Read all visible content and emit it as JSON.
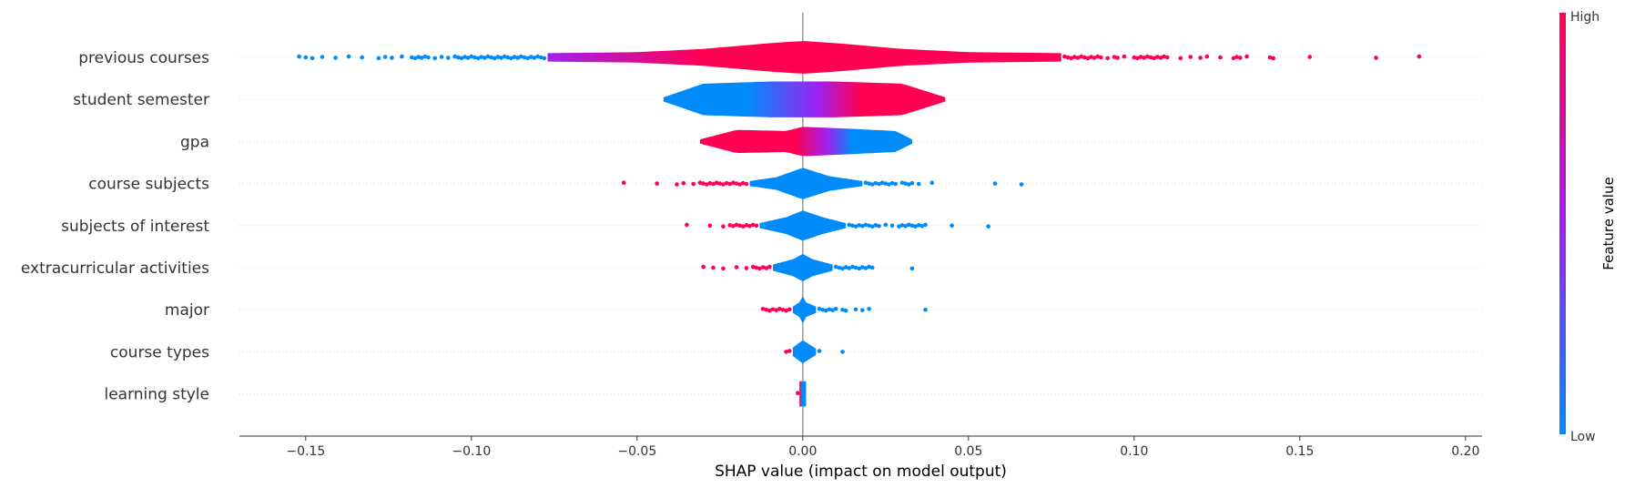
{
  "chart_data": {
    "type": "violin",
    "xlabel": "SHAP value (impact on model output)",
    "xlim": [
      -0.17,
      0.205
    ],
    "xticks": [
      -0.15,
      -0.1,
      -0.05,
      0.0,
      0.05,
      0.1,
      0.15,
      0.2
    ],
    "xtick_labels": [
      "−0.15",
      "−0.10",
      "−0.05",
      "0.00",
      "0.05",
      "0.10",
      "0.15",
      "0.20"
    ],
    "colors": {
      "low": "#008bfb",
      "mid": "#a020f0",
      "high": "#ff0052"
    },
    "colorbar": {
      "title": "Feature value",
      "high_label": "High",
      "low_label": "Low"
    },
    "features": [
      {
        "name": "previous courses",
        "body": [
          -0.077,
          0.078
        ],
        "width": [
          [
            -0.077,
            0.2
          ],
          [
            -0.05,
            0.25
          ],
          [
            -0.03,
            0.4
          ],
          [
            -0.012,
            0.65
          ],
          [
            0,
            0.78
          ],
          [
            0.012,
            0.65
          ],
          [
            0.03,
            0.4
          ],
          [
            0.05,
            0.25
          ],
          [
            0.078,
            0.2
          ]
        ],
        "grad": [
          [
            0,
            "mid"
          ],
          [
            0.3,
            "high"
          ],
          [
            1,
            "high"
          ]
        ],
        "pts_low": [
          -0.152,
          -0.15,
          -0.148,
          -0.145,
          -0.141,
          -0.137,
          -0.133,
          -0.128,
          -0.126,
          -0.124,
          -0.121,
          -0.118,
          -0.117,
          -0.116,
          -0.115,
          -0.114,
          -0.113,
          -0.111,
          -0.109,
          -0.107,
          -0.105,
          -0.104,
          -0.103,
          -0.102,
          -0.101,
          -0.1,
          -0.099,
          -0.098,
          -0.097,
          -0.096,
          -0.095,
          -0.094,
          -0.093,
          -0.092,
          -0.091,
          -0.09,
          -0.089,
          -0.088,
          -0.087,
          -0.086,
          -0.085,
          -0.084,
          -0.083,
          -0.082,
          -0.081,
          -0.08,
          -0.079,
          -0.078
        ],
        "pts_high": [
          0.079,
          0.08,
          0.081,
          0.082,
          0.083,
          0.084,
          0.085,
          0.086,
          0.087,
          0.088,
          0.089,
          0.09,
          0.092,
          0.094,
          0.095,
          0.097,
          0.1,
          0.101,
          0.102,
          0.103,
          0.104,
          0.105,
          0.106,
          0.107,
          0.108,
          0.109,
          0.11,
          0.114,
          0.117,
          0.12,
          0.122,
          0.126,
          0.13,
          0.131,
          0.132,
          0.134,
          0.141,
          0.142,
          0.153,
          0.173,
          0.186
        ]
      },
      {
        "name": "student semester",
        "body": [
          -0.042,
          0.043
        ],
        "width": [
          [
            -0.042,
            0.1
          ],
          [
            -0.03,
            0.75
          ],
          [
            -0.01,
            0.85
          ],
          [
            0.01,
            0.85
          ],
          [
            0.03,
            0.75
          ],
          [
            0.043,
            0.1
          ]
        ],
        "grad": [
          [
            0,
            "low"
          ],
          [
            0.3,
            "low"
          ],
          [
            0.55,
            "mid"
          ],
          [
            0.7,
            "high"
          ],
          [
            1,
            "high"
          ]
        ],
        "pts_low": [],
        "pts_high": []
      },
      {
        "name": "gpa",
        "body": [
          -0.031,
          0.033
        ],
        "width": [
          [
            -0.031,
            0.1
          ],
          [
            -0.02,
            0.55
          ],
          [
            -0.005,
            0.5
          ],
          [
            0,
            0.7
          ],
          [
            0.015,
            0.6
          ],
          [
            0.028,
            0.5
          ],
          [
            0.033,
            0.1
          ]
        ],
        "grad": [
          [
            0,
            "high"
          ],
          [
            0.45,
            "high"
          ],
          [
            0.6,
            "mid"
          ],
          [
            0.72,
            "low"
          ],
          [
            1,
            "low"
          ]
        ],
        "pts_low": [],
        "pts_high": []
      },
      {
        "name": "course subjects",
        "body": [
          -0.016,
          0.018
        ],
        "width": [
          [
            -0.016,
            0.12
          ],
          [
            -0.008,
            0.3
          ],
          [
            0,
            0.75
          ],
          [
            0.008,
            0.35
          ],
          [
            0.018,
            0.12
          ]
        ],
        "grad": [
          [
            0,
            "low"
          ],
          [
            1,
            "low"
          ]
        ],
        "pts_low": [
          0.019,
          0.02,
          0.021,
          0.022,
          0.023,
          0.024,
          0.025,
          0.026,
          0.027,
          0.028,
          0.03,
          0.031,
          0.032,
          0.033,
          0.035,
          0.039,
          0.058,
          0.066
        ],
        "pts_high": [
          -0.054,
          -0.044,
          -0.038,
          -0.036,
          -0.033,
          -0.031,
          -0.03,
          -0.029,
          -0.028,
          -0.027,
          -0.026,
          -0.025,
          -0.024,
          -0.023,
          -0.022,
          -0.021,
          -0.02,
          -0.019,
          -0.018,
          -0.017
        ]
      },
      {
        "name": "subjects of interest",
        "body": [
          -0.013,
          0.013
        ],
        "width": [
          [
            -0.013,
            0.12
          ],
          [
            -0.005,
            0.4
          ],
          [
            0,
            0.72
          ],
          [
            0.006,
            0.4
          ],
          [
            0.013,
            0.12
          ]
        ],
        "grad": [
          [
            0,
            "low"
          ],
          [
            1,
            "low"
          ]
        ],
        "pts_low": [
          0.014,
          0.015,
          0.016,
          0.017,
          0.018,
          0.019,
          0.02,
          0.021,
          0.022,
          0.023,
          0.025,
          0.027,
          0.029,
          0.03,
          0.031,
          0.032,
          0.033,
          0.034,
          0.035,
          0.036,
          0.037,
          0.045,
          0.056
        ],
        "pts_high": [
          -0.035,
          -0.028,
          -0.024,
          -0.022,
          -0.021,
          -0.02,
          -0.019,
          -0.018,
          -0.017,
          -0.016,
          -0.015,
          -0.014
        ]
      },
      {
        "name": "extracurricular activities",
        "body": [
          -0.009,
          0.009
        ],
        "width": [
          [
            -0.009,
            0.15
          ],
          [
            -0.003,
            0.4
          ],
          [
            0,
            0.65
          ],
          [
            0.003,
            0.4
          ],
          [
            0.009,
            0.15
          ]
        ],
        "grad": [
          [
            0,
            "low"
          ],
          [
            1,
            "low"
          ]
        ],
        "pts_low": [
          0.01,
          0.011,
          0.012,
          0.013,
          0.014,
          0.015,
          0.016,
          0.017,
          0.018,
          0.019,
          0.02,
          0.021,
          0.033
        ],
        "pts_high": [
          -0.03,
          -0.027,
          -0.024,
          -0.02,
          -0.017,
          -0.015,
          -0.014,
          -0.013,
          -0.012,
          -0.011,
          -0.01
        ]
      },
      {
        "name": "major",
        "body": [
          -0.003,
          0.004
        ],
        "width": [
          [
            -0.003,
            0.15
          ],
          [
            -0.001,
            0.35
          ],
          [
            0,
            0.65
          ],
          [
            0.001,
            0.35
          ],
          [
            0.004,
            0.15
          ]
        ],
        "grad": [
          [
            0,
            "low"
          ],
          [
            1,
            "low"
          ]
        ],
        "pts_low": [
          0.005,
          0.006,
          0.007,
          0.008,
          0.009,
          0.01,
          0.012,
          0.013,
          0.016,
          0.018,
          0.02,
          0.037
        ],
        "pts_high": [
          -0.012,
          -0.011,
          -0.01,
          -0.009,
          -0.008,
          -0.007,
          -0.006,
          -0.005,
          -0.004
        ]
      },
      {
        "name": "course types",
        "body": [
          -0.003,
          0.004
        ],
        "width": [
          [
            -0.003,
            0.2
          ],
          [
            0,
            0.55
          ],
          [
            0.004,
            0.15
          ]
        ],
        "grad": [
          [
            0,
            "low"
          ],
          [
            1,
            "low"
          ]
        ],
        "pts_low": [
          0.005,
          0.012
        ],
        "pts_high": [
          -0.004,
          -0.005
        ]
      },
      {
        "name": "learning style",
        "body": [
          -0.001,
          0.001
        ],
        "width": [
          [
            -0.001,
            0.6
          ],
          [
            0.001,
            0.6
          ]
        ],
        "grad": [
          [
            0,
            "high"
          ],
          [
            0.4,
            "low"
          ],
          [
            1,
            "low"
          ]
        ],
        "pts_low": [],
        "pts_high": [
          -0.0015
        ]
      }
    ]
  }
}
